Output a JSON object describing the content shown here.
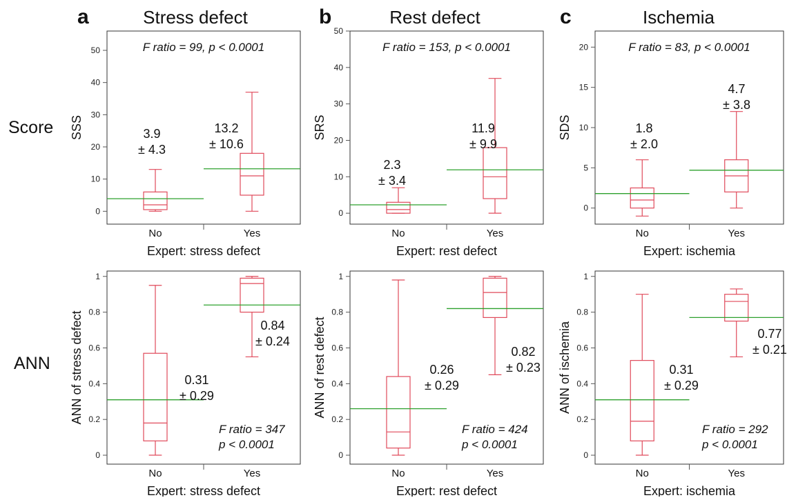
{
  "figure": {
    "columns": [
      {
        "letter": "a",
        "title": "Stress defect"
      },
      {
        "letter": "b",
        "title": "Rest defect"
      },
      {
        "letter": "c",
        "title": "Ischemia"
      }
    ],
    "rows": [
      {
        "label": "Score"
      },
      {
        "label": "ANN"
      }
    ]
  },
  "colors": {
    "box": "#e0495a",
    "mean_line": "#2ca02c",
    "frame": "#333333",
    "tick": "#555555"
  },
  "chart_data": [
    {
      "type": "box",
      "id": "score-stress",
      "xlabel": "Expert: stress defect",
      "ylabel": "SSS",
      "ylim": [
        -4,
        56
      ],
      "yticks": [
        0,
        10,
        20,
        30,
        40,
        50
      ],
      "categories": [
        "No",
        "Yes"
      ],
      "boxes": [
        {
          "min": 0,
          "q1": 0.5,
          "median": 2,
          "q3": 6,
          "max": 13
        },
        {
          "min": 0,
          "q1": 5,
          "median": 11,
          "q3": 18,
          "max": 37
        }
      ],
      "means": [
        3.9,
        13.2
      ],
      "annotations": [
        {
          "mean": "3.9",
          "sd": "± 4.3"
        },
        {
          "mean": "13.2",
          "sd": "± 10.6"
        }
      ],
      "stat_lines": [
        "F ratio = 99, p < 0.0001"
      ],
      "stat_position": "top"
    },
    {
      "type": "box",
      "id": "score-rest",
      "xlabel": "Expert: rest defect",
      "ylabel": "SRS",
      "ylim": [
        -3,
        50
      ],
      "yticks": [
        0,
        10,
        20,
        30,
        40,
        50
      ],
      "categories": [
        "No",
        "Yes"
      ],
      "boxes": [
        {
          "min": 0,
          "q1": 0,
          "median": 1,
          "q3": 3,
          "max": 7
        },
        {
          "min": 0,
          "q1": 4,
          "median": 10,
          "q3": 18,
          "max": 37
        }
      ],
      "means": [
        2.3,
        11.9
      ],
      "annotations": [
        {
          "mean": "2.3",
          "sd": "± 3.4"
        },
        {
          "mean": "11.9",
          "sd": "± 9.9"
        }
      ],
      "stat_lines": [
        "F ratio = 153, p < 0.0001"
      ],
      "stat_position": "top"
    },
    {
      "type": "box",
      "id": "score-ischemia",
      "xlabel": "Expert: ischemia",
      "ylabel": "SDS",
      "ylim": [
        -2,
        22
      ],
      "yticks": [
        0,
        5,
        10,
        15,
        20
      ],
      "categories": [
        "No",
        "Yes"
      ],
      "boxes": [
        {
          "min": -1,
          "q1": 0,
          "median": 1,
          "q3": 2.5,
          "max": 6
        },
        {
          "min": 0,
          "q1": 2,
          "median": 4,
          "q3": 6,
          "max": 12
        }
      ],
      "means": [
        1.8,
        4.7
      ],
      "annotations": [
        {
          "mean": "1.8",
          "sd": "± 2.0"
        },
        {
          "mean": "4.7",
          "sd": "± 3.8"
        }
      ],
      "stat_lines": [
        "F ratio = 83, p < 0.0001"
      ],
      "stat_position": "top"
    },
    {
      "type": "box",
      "id": "ann-stress",
      "xlabel": "Expert: stress defect",
      "ylabel": "ANN of stress defect",
      "ylim": [
        -0.05,
        1.03
      ],
      "yticks": [
        0,
        0.2,
        0.4,
        0.6,
        0.8,
        1
      ],
      "categories": [
        "No",
        "Yes"
      ],
      "boxes": [
        {
          "min": 0,
          "q1": 0.08,
          "median": 0.18,
          "q3": 0.57,
          "max": 0.95
        },
        {
          "min": 0.55,
          "q1": 0.8,
          "median": 0.96,
          "q3": 0.99,
          "max": 1.0
        }
      ],
      "means": [
        0.31,
        0.84
      ],
      "annotations": [
        {
          "mean": "0.31",
          "sd": "± 0.29"
        },
        {
          "mean": "0.84",
          "sd": "± 0.24"
        }
      ],
      "stat_lines": [
        "F ratio = 347",
        "p < 0.0001"
      ],
      "stat_position": "bottom"
    },
    {
      "type": "box",
      "id": "ann-rest",
      "xlabel": "Expert: rest defect",
      "ylabel": "ANN of rest defect",
      "ylim": [
        -0.05,
        1.03
      ],
      "yticks": [
        0,
        0.2,
        0.4,
        0.6,
        0.8,
        1
      ],
      "categories": [
        "No",
        "Yes"
      ],
      "boxes": [
        {
          "min": 0,
          "q1": 0.04,
          "median": 0.13,
          "q3": 0.44,
          "max": 0.98
        },
        {
          "min": 0.45,
          "q1": 0.77,
          "median": 0.91,
          "q3": 0.99,
          "max": 1.0
        }
      ],
      "means": [
        0.26,
        0.82
      ],
      "annotations": [
        {
          "mean": "0.26",
          "sd": "± 0.29"
        },
        {
          "mean": "0.82",
          "sd": "± 0.23"
        }
      ],
      "stat_lines": [
        "F ratio = 424",
        "p < 0.0001"
      ],
      "stat_position": "bottom"
    },
    {
      "type": "box",
      "id": "ann-ischemia",
      "xlabel": "Expert: ischemia",
      "ylabel": "ANN of ischemia",
      "ylim": [
        -0.05,
        1.03
      ],
      "yticks": [
        0,
        0.2,
        0.4,
        0.6,
        0.8,
        1
      ],
      "categories": [
        "No",
        "Yes"
      ],
      "boxes": [
        {
          "min": 0,
          "q1": 0.08,
          "median": 0.19,
          "q3": 0.53,
          "max": 0.9
        },
        {
          "min": 0.55,
          "q1": 0.75,
          "median": 0.86,
          "q3": 0.9,
          "max": 0.93
        }
      ],
      "means": [
        0.31,
        0.77
      ],
      "annotations": [
        {
          "mean": "0.31",
          "sd": "± 0.29"
        },
        {
          "mean": "0.77",
          "sd": "± 0.21"
        }
      ],
      "stat_lines": [
        "F ratio = 292",
        "p < 0.0001"
      ],
      "stat_position": "bottom"
    }
  ]
}
